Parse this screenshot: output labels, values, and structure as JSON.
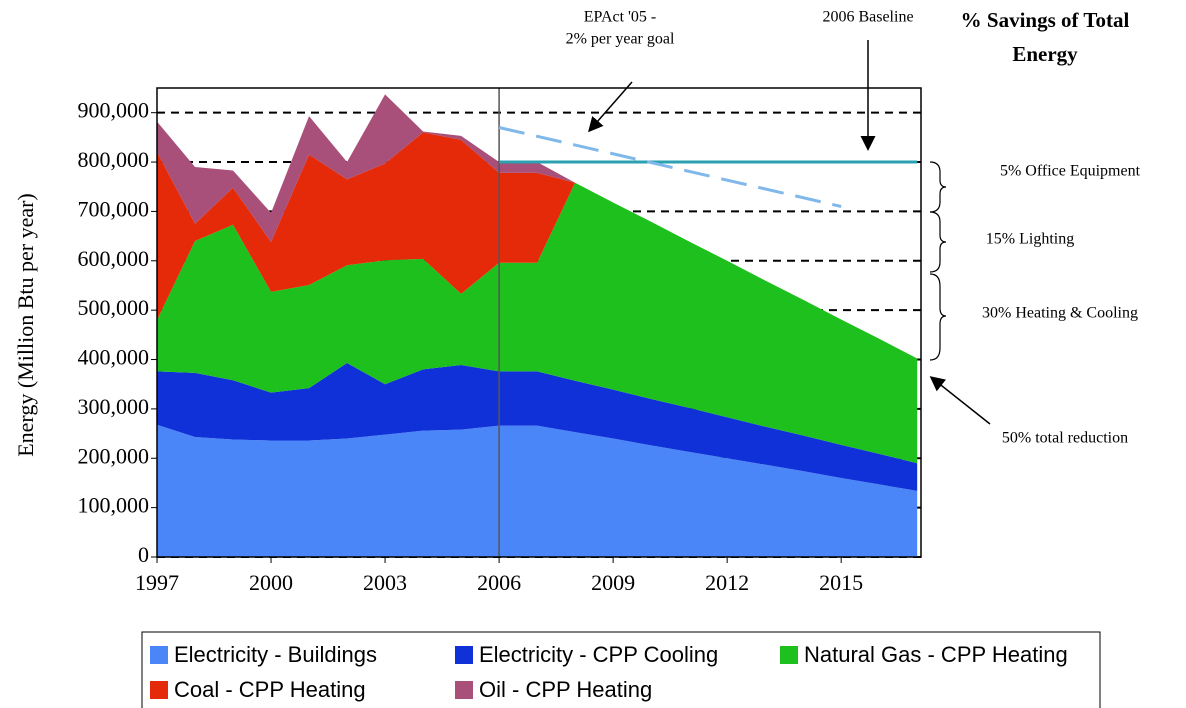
{
  "chart_data": {
    "type": "stacked-area",
    "y_label": "Energy (Million Btu per year)",
    "x": [
      1997,
      1998,
      1999,
      2000,
      2001,
      2002,
      2003,
      2004,
      2005,
      2006,
      2007,
      2008,
      2009,
      2010,
      2011,
      2012,
      2013,
      2014,
      2015,
      2016,
      2017
    ],
    "series": [
      {
        "name": "Electricity - Buildings",
        "color": "#4a86f7",
        "values": [
          268000,
          243000,
          238000,
          236000,
          236000,
          240000,
          248000,
          256000,
          258000,
          266000,
          266000,
          253000,
          240000,
          226000,
          213000,
          200000,
          187000,
          174000,
          160000,
          147000,
          134000
        ]
      },
      {
        "name": "Electricity - CPP Cooling",
        "color": "#1030d8",
        "values": [
          108000,
          130000,
          120000,
          97000,
          106000,
          153000,
          102000,
          124000,
          131000,
          110000,
          110000,
          104000,
          99000,
          94000,
          89000,
          83000,
          77000,
          72000,
          67000,
          62000,
          56000
        ]
      },
      {
        "name": "Natural Gas - CPP Heating",
        "color": "#1ec01e",
        "values": [
          104000,
          267000,
          315000,
          204000,
          209000,
          198000,
          251000,
          224000,
          144000,
          220000,
          220000,
          401000,
          379000,
          359000,
          337000,
          317000,
          296000,
          275000,
          254000,
          233000,
          212000
        ]
      },
      {
        "name": "Coal - CPP Heating",
        "color": "#e52a0a",
        "values": [
          340000,
          35000,
          75000,
          101000,
          264000,
          174000,
          196000,
          256000,
          312000,
          182000,
          182000,
          0,
          0,
          0,
          0,
          0,
          0,
          0,
          0,
          0,
          0
        ]
      },
      {
        "name": "Oil - CPP Heating",
        "color": "#a8507a",
        "values": [
          62000,
          115000,
          35000,
          59000,
          78000,
          35000,
          140000,
          2000,
          8000,
          22000,
          22000,
          0,
          0,
          0,
          0,
          0,
          0,
          0,
          0,
          0,
          0
        ]
      }
    ],
    "xlim": [
      1997,
      2017.1
    ],
    "xticks": [
      1997,
      2000,
      2003,
      2006,
      2009,
      2012,
      2015
    ],
    "ylim": [
      0,
      950000
    ],
    "yticks": [
      0,
      {
        "value": 100000,
        "label": "100,000"
      },
      {
        "value": 200000,
        "label": "200,000"
      },
      {
        "value": 300000,
        "label": "300,000"
      },
      {
        "value": 400000,
        "label": "400,000"
      },
      {
        "value": 500000,
        "label": "500,000"
      },
      {
        "value": 600000,
        "label": "600,000"
      },
      {
        "value": 700000,
        "label": "700,000"
      },
      {
        "value": 800000,
        "label": "800,000"
      },
      {
        "value": 900000,
        "label": "900,000"
      }
    ],
    "grid": true,
    "vline_x": 2006,
    "baseline": {
      "x": [
        2006,
        2017
      ],
      "values": [
        800000,
        800000
      ],
      "color": "#2aa0b0"
    },
    "goal": {
      "x": [
        2006,
        2015
      ],
      "values": [
        870000,
        710000
      ],
      "color": "#80b8ea"
    },
    "annotations": {
      "epact": [
        "EPAct '05 -",
        "2% per year goal"
      ],
      "baseline": "2006 Baseline",
      "savings_title": [
        "% Savings of Total",
        "Energy"
      ],
      "office": "5% Office Equipment",
      "lighting": "15% Lighting",
      "heating": "30% Heating & Cooling",
      "total": "50% total reduction"
    }
  }
}
